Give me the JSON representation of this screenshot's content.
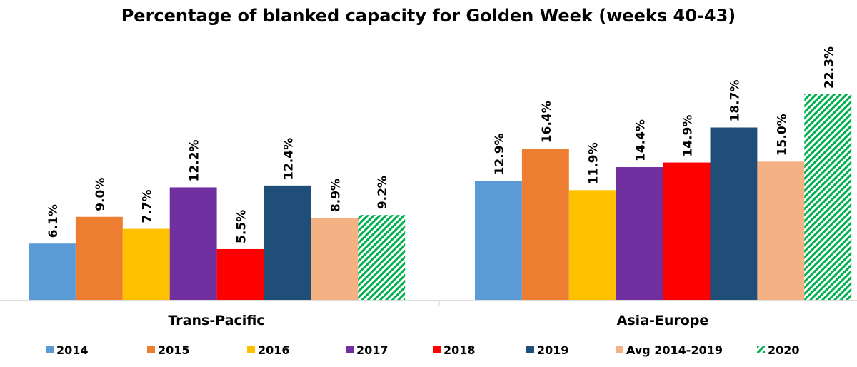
{
  "chart_data": {
    "type": "bar",
    "title": "Percentage of blanked capacity for Golden Week (weeks 40-43)",
    "categories": [
      "Trans-Pacific",
      "Asia-Europe"
    ],
    "series": [
      {
        "name": "2014",
        "values": [
          6.1,
          12.9
        ],
        "labels": [
          "6.1%",
          "12.9%"
        ],
        "color": "#5B9BD5"
      },
      {
        "name": "2015",
        "values": [
          9.0,
          16.4
        ],
        "labels": [
          "9.0%",
          "16.4%"
        ],
        "color": "#ED7D31"
      },
      {
        "name": "2016",
        "values": [
          7.7,
          11.9
        ],
        "labels": [
          "7.7%",
          "11.9%"
        ],
        "color": "#FFC000"
      },
      {
        "name": "2017",
        "values": [
          12.2,
          14.4
        ],
        "labels": [
          "12.2%",
          "14.4%"
        ],
        "color": "#7030A0"
      },
      {
        "name": "2018",
        "values": [
          5.5,
          14.9
        ],
        "labels": [
          "5.5%",
          "14.9%"
        ],
        "color": "#FF0000"
      },
      {
        "name": "2019",
        "values": [
          12.4,
          18.7
        ],
        "labels": [
          "12.4%",
          "18.7%"
        ],
        "color": "#1F4E79"
      },
      {
        "name": "Avg 2014-2019",
        "values": [
          8.9,
          15.0
        ],
        "labels": [
          "8.9%",
          "15.0%"
        ],
        "color": "#F4B183"
      },
      {
        "name": "2020",
        "values": [
          9.2,
          22.3
        ],
        "labels": [
          "9.2%",
          "22.3%"
        ],
        "color": "#00B050",
        "pattern": "diagonal-hatch"
      }
    ],
    "ylim": [
      0,
      23
    ],
    "grid": false,
    "legend": "bottom",
    "xlabel": "",
    "ylabel": ""
  }
}
